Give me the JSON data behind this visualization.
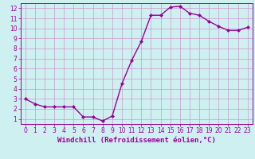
{
  "x": [
    0,
    1,
    2,
    3,
    4,
    5,
    6,
    7,
    8,
    9,
    10,
    11,
    12,
    13,
    14,
    15,
    16,
    17,
    18,
    19,
    20,
    21,
    22,
    23
  ],
  "y": [
    3.0,
    2.5,
    2.2,
    2.2,
    2.2,
    2.2,
    1.2,
    1.2,
    0.8,
    1.3,
    4.5,
    6.8,
    8.7,
    11.3,
    11.3,
    12.1,
    12.2,
    11.5,
    11.3,
    10.7,
    10.2,
    9.8,
    9.8,
    10.1
  ],
  "line_color": "#990099",
  "marker": "D",
  "marker_size": 2,
  "bg_color": "#cff0f0",
  "grid_color": "#cc99cc",
  "xlabel": "Windchill (Refroidissement éolien,°C)",
  "xlim": [
    -0.5,
    23.5
  ],
  "ylim": [
    0.5,
    12.5
  ],
  "xticks": [
    0,
    1,
    2,
    3,
    4,
    5,
    6,
    7,
    8,
    9,
    10,
    11,
    12,
    13,
    14,
    15,
    16,
    17,
    18,
    19,
    20,
    21,
    22,
    23
  ],
  "yticks": [
    1,
    2,
    3,
    4,
    5,
    6,
    7,
    8,
    9,
    10,
    11,
    12
  ],
  "xlabel_fontsize": 6.5,
  "tick_fontsize": 5.5,
  "line_width": 1.0,
  "line_color_hex": "#990099"
}
